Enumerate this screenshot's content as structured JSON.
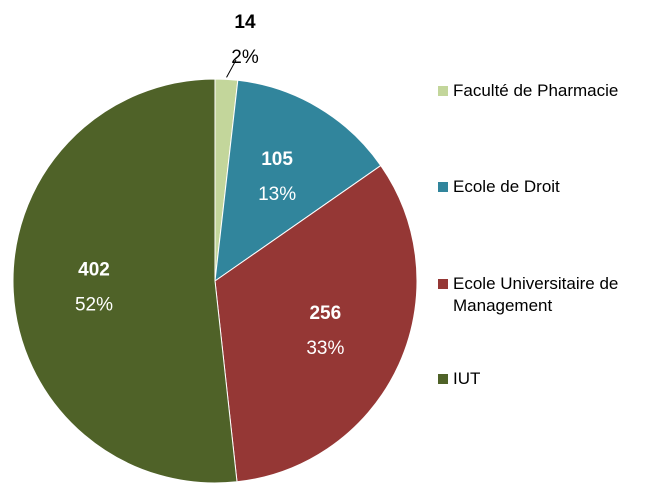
{
  "chart_data": {
    "type": "pie",
    "categories": [
      "Faculté de Pharmacie",
      "Ecole de Droit",
      "Ecole Universitaire de Management",
      "IUT"
    ],
    "values": [
      14,
      105,
      256,
      402
    ],
    "percentages": [
      2,
      13,
      33,
      52
    ],
    "percentage_labels": [
      "2%",
      "13%",
      "33%",
      "52%"
    ],
    "colors": [
      "#c3d69b",
      "#31859c",
      "#953735",
      "#4f6228"
    ]
  }
}
